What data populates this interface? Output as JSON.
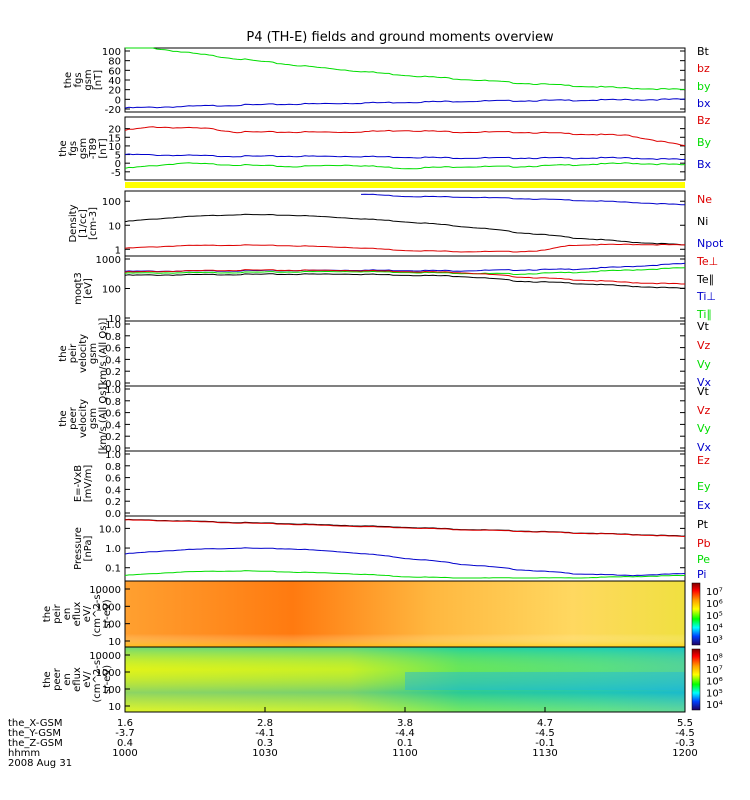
{
  "title": "P4 (TH-E) fields and ground moments overview",
  "colors": {
    "black": "#000000",
    "red": "#dd0000",
    "green": "#00dd00",
    "blue": "#0000cc",
    "yellow": "#ffff00"
  },
  "chart_data": [
    {
      "type": "line",
      "panel": "fgs",
      "ylabel": [
        "the",
        "fgs",
        "gsm",
        "[nT]"
      ],
      "ylim": [
        -20,
        100
      ],
      "yticks": [
        "100",
        "80",
        "60",
        "40",
        "20",
        "0",
        "-20"
      ],
      "legend": [
        {
          "label": "Bt",
          "color": "black"
        },
        {
          "label": "bz",
          "color": "red"
        },
        {
          "label": "by",
          "color": "green"
        },
        {
          "label": "bx",
          "color": "blue"
        }
      ],
      "series": [
        {
          "name": "by",
          "color": "green",
          "x": [
            0,
            0.05,
            0.1,
            0.2,
            0.3,
            0.4,
            0.5,
            0.6,
            0.7,
            0.8,
            0.9,
            1.0
          ],
          "values": [
            115,
            106,
            98,
            84,
            71,
            60,
            50,
            42,
            34,
            28,
            23,
            20
          ]
        },
        {
          "name": "bx",
          "color": "blue",
          "x": [
            0,
            0.1,
            0.2,
            0.3,
            0.4,
            0.5,
            0.6,
            0.7,
            0.8,
            0.9,
            1.0
          ],
          "values": [
            -18,
            -15,
            -12,
            -10,
            -8,
            -6,
            -4,
            -3,
            -2,
            -1,
            0
          ]
        }
      ]
    },
    {
      "type": "line",
      "panel": "fgs_t89",
      "ylabel": [
        "the",
        "fgs",
        "gsm",
        "-T89",
        "[nT]"
      ],
      "ylim": [
        -8,
        25
      ],
      "yticks": [
        "20",
        "15",
        "10",
        "5",
        "0",
        "-5"
      ],
      "legend": [
        {
          "label": "Bz",
          "color": "red"
        },
        {
          "label": "By",
          "color": "green"
        },
        {
          "label": "Bx",
          "color": "blue"
        }
      ],
      "series": [
        {
          "name": "Bz",
          "color": "red",
          "x": [
            0,
            0.05,
            0.15,
            0.2,
            0.3,
            0.4,
            0.5,
            0.6,
            0.7,
            0.8,
            0.9,
            0.95,
            1.0
          ],
          "values": [
            19,
            21,
            20,
            18,
            18,
            18,
            19,
            18,
            18,
            17,
            16,
            13,
            10
          ]
        },
        {
          "name": "Bx",
          "color": "blue",
          "x": [
            0,
            0.2,
            0.4,
            0.6,
            0.8,
            0.9,
            1.0
          ],
          "values": [
            5,
            4,
            4,
            3,
            3,
            3,
            2
          ]
        },
        {
          "name": "By",
          "color": "green",
          "x": [
            0,
            0.1,
            0.2,
            0.3,
            0.4,
            0.5,
            0.6,
            0.7,
            0.8,
            0.9,
            1.0
          ],
          "values": [
            -3,
            0,
            -1,
            -2,
            -1,
            -3,
            -2,
            -2,
            -1,
            0,
            -1
          ]
        }
      ]
    },
    {
      "type": "line",
      "panel": "density",
      "ylabel": [
        "Density",
        "[1/cc]",
        "[cm-3]"
      ],
      "ylim": [
        0.7,
        200
      ],
      "log": true,
      "yticks": [
        "100",
        "10",
        "1"
      ],
      "legend": [
        {
          "label": "Ne",
          "color": "red"
        },
        {
          "label": "Ni",
          "color": "black"
        },
        {
          "label": "Npot",
          "color": "blue"
        }
      ],
      "series": [
        {
          "name": "Ni",
          "color": "black",
          "x": [
            0,
            0.1,
            0.2,
            0.3,
            0.4,
            0.5,
            0.6,
            0.7,
            0.8,
            0.9,
            1.0
          ],
          "values": [
            14,
            22,
            28,
            26,
            20,
            14,
            9,
            5,
            3,
            2,
            1.5
          ]
        },
        {
          "name": "Ne",
          "color": "red",
          "x": [
            0,
            0.1,
            0.2,
            0.3,
            0.4,
            0.5,
            0.6,
            0.7,
            0.75,
            0.8,
            0.9,
            1.0
          ],
          "values": [
            1.1,
            1.4,
            1.5,
            1.4,
            1.2,
            0.9,
            0.8,
            0.8,
            0.9,
            1.5,
            1.6,
            1.5
          ]
        },
        {
          "name": "Npot",
          "color": "blue",
          "x": [
            0.42,
            0.5,
            0.6,
            0.7,
            0.8,
            0.9,
            1.0
          ],
          "values": [
            200,
            160,
            150,
            130,
            110,
            90,
            70
          ]
        }
      ]
    },
    {
      "type": "line",
      "panel": "temperature",
      "ylabel": [
        "moqt3",
        "[eV]"
      ],
      "ylim": [
        10,
        1000
      ],
      "log": true,
      "yticks": [
        "1000",
        "100",
        "10"
      ],
      "legend": [
        {
          "label": "Te⊥",
          "color": "red"
        },
        {
          "label": "Te∥",
          "color": "black"
        },
        {
          "label": "Ti⊥",
          "color": "blue"
        },
        {
          "label": "Ti∥",
          "color": "green"
        }
      ],
      "series": [
        {
          "name": "Ti⊥",
          "color": "blue",
          "x": [
            0,
            0.2,
            0.4,
            0.6,
            0.8,
            0.9,
            1.0
          ],
          "values": [
            380,
            400,
            420,
            400,
            450,
            550,
            700
          ]
        },
        {
          "name": "Ti∥",
          "color": "green",
          "x": [
            0,
            0.2,
            0.4,
            0.6,
            0.7,
            0.8,
            0.9,
            1.0
          ],
          "values": [
            330,
            350,
            380,
            330,
            310,
            350,
            420,
            500
          ]
        },
        {
          "name": "Te⊥",
          "color": "red",
          "x": [
            0,
            0.2,
            0.4,
            0.6,
            0.7,
            0.8,
            0.9,
            1.0
          ],
          "values": [
            360,
            420,
            410,
            350,
            250,
            200,
            160,
            140
          ]
        },
        {
          "name": "Te∥",
          "color": "black",
          "x": [
            0,
            0.2,
            0.4,
            0.6,
            0.7,
            0.8,
            0.9,
            1.0
          ],
          "values": [
            280,
            300,
            310,
            260,
            180,
            150,
            120,
            100
          ]
        }
      ]
    },
    {
      "type": "line",
      "panel": "peir_velocity",
      "ylabel": [
        "the",
        "peir",
        "velocity",
        "gsm",
        "[km/s (All Qs)]"
      ],
      "ylim": [
        0,
        1
      ],
      "yticks": [
        "1.0",
        "0.8",
        "0.6",
        "0.4",
        "0.2",
        "0.0"
      ],
      "legend": [
        {
          "label": "Vt",
          "color": "black"
        },
        {
          "label": "Vz",
          "color": "red"
        },
        {
          "label": "Vy",
          "color": "green"
        },
        {
          "label": "Vx",
          "color": "blue"
        }
      ],
      "series": []
    },
    {
      "type": "line",
      "panel": "peer_velocity",
      "ylabel": [
        "the",
        "peer",
        "velocity",
        "gsm",
        "[km/s (All Qs)]"
      ],
      "ylim": [
        0,
        1
      ],
      "yticks": [
        "1.0",
        "0.8",
        "0.6",
        "0.4",
        "0.2",
        "0.0"
      ],
      "legend": [
        {
          "label": "Vt",
          "color": "black"
        },
        {
          "label": "Vz",
          "color": "red"
        },
        {
          "label": "Vy",
          "color": "green"
        },
        {
          "label": "Vx",
          "color": "blue"
        }
      ],
      "series": []
    },
    {
      "type": "line",
      "panel": "efield",
      "ylabel": [
        "E=-VxB",
        "[mV/m]"
      ],
      "ylim": [
        0,
        1
      ],
      "yticks": [
        "1.0",
        "0.8",
        "0.6",
        "0.4",
        "0.2",
        "0.0"
      ],
      "legend": [
        {
          "label": "Ez",
          "color": "red"
        },
        {
          "label": "Ey",
          "color": "green"
        },
        {
          "label": "Ex",
          "color": "blue"
        }
      ],
      "series": []
    },
    {
      "type": "line",
      "panel": "pressure",
      "ylabel": [
        "Pressure",
        "[nPa]"
      ],
      "ylim": [
        0.03,
        30
      ],
      "log": true,
      "yticks": [
        "10.0",
        "1.0",
        "0.1"
      ],
      "legend": [
        {
          "label": "Pt",
          "color": "black"
        },
        {
          "label": "Pb",
          "color": "red"
        },
        {
          "label": "Pe",
          "color": "green"
        },
        {
          "label": "Pi",
          "color": "blue"
        }
      ],
      "series": [
        {
          "name": "Pt",
          "color": "black",
          "x": [
            0,
            0.2,
            0.4,
            0.6,
            0.8,
            1.0
          ],
          "values": [
            28,
            20,
            14,
            9,
            6,
            4
          ]
        },
        {
          "name": "Pb",
          "color": "red",
          "x": [
            0,
            0.2,
            0.4,
            0.6,
            0.8,
            1.0
          ],
          "values": [
            27,
            19,
            13,
            8.6,
            5.8,
            3.8
          ]
        },
        {
          "name": "Pi",
          "color": "blue",
          "x": [
            0,
            0.1,
            0.2,
            0.3,
            0.4,
            0.5,
            0.6,
            0.7,
            0.8,
            0.9,
            1.0
          ],
          "values": [
            0.5,
            0.8,
            1.0,
            0.9,
            0.6,
            0.3,
            0.15,
            0.08,
            0.05,
            0.04,
            0.05
          ]
        },
        {
          "name": "Pe",
          "color": "green",
          "x": [
            0,
            0.1,
            0.2,
            0.3,
            0.4,
            0.5,
            0.6,
            0.7,
            0.8,
            0.9,
            1.0
          ],
          "values": [
            0.04,
            0.06,
            0.07,
            0.06,
            0.05,
            0.035,
            0.03,
            0.03,
            0.03,
            0.035,
            0.04
          ]
        }
      ]
    },
    {
      "type": "heatmap",
      "panel": "peir_eflux",
      "ylabel": [
        "the",
        "peir",
        "en",
        "eflux",
        "eV/",
        "(cm^2-s-",
        "sr-eV)"
      ],
      "yticks": [
        "10000",
        "1000",
        "100",
        "10"
      ],
      "colorbar_ticks": [
        "10⁷",
        "10⁶",
        "10⁵",
        "10⁴",
        "10³"
      ]
    },
    {
      "type": "heatmap",
      "panel": "peer_eflux",
      "ylabel": [
        "the",
        "peer",
        "en",
        "eflux",
        "eV/",
        "(cm^2-s-",
        "sr-eV)"
      ],
      "yticks": [
        "10000",
        "1000",
        "100",
        "10"
      ],
      "colorbar_ticks": [
        "10⁸",
        "10⁷",
        "10⁶",
        "10⁵",
        "10⁴"
      ]
    }
  ],
  "xaxis": {
    "rows": [
      {
        "label": "the_X-GSM",
        "values": [
          "1.6",
          "2.8",
          "3.8",
          "4.7",
          "5.5"
        ]
      },
      {
        "label": "the_Y-GSM",
        "values": [
          "-3.7",
          "-4.1",
          "-4.4",
          "-4.5",
          "-4.5"
        ]
      },
      {
        "label": "the_Z-GSM",
        "values": [
          "0.4",
          "0.3",
          "0.1",
          "-0.1",
          "-0.3"
        ]
      },
      {
        "label": "hhmm",
        "values": [
          "1000",
          "1030",
          "1100",
          "1130",
          "1200"
        ]
      }
    ],
    "date": "2008 Aug 31"
  }
}
